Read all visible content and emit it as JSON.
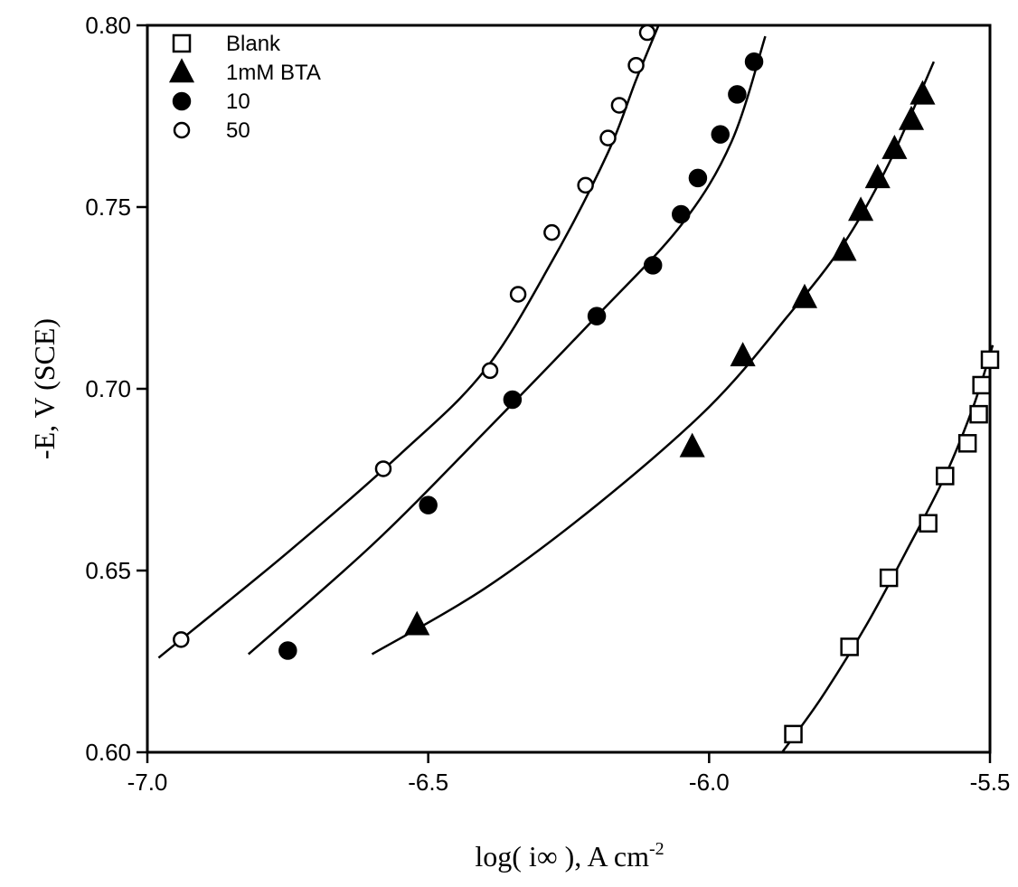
{
  "chart_data": {
    "type": "scatter",
    "title": "",
    "xlabel": "log( i∞ ), A cm-2",
    "xlabel_parts": {
      "main": "log( i∞ ), A cm",
      "superscript": "-2"
    },
    "ylabel": "-E, V (SCE)",
    "xlim": [
      -7.0,
      -5.5
    ],
    "ylim": [
      0.6,
      0.8
    ],
    "xticks": [
      -7.0,
      -6.5,
      -6.0,
      -5.5
    ],
    "xtick_labels": [
      "-7.0",
      "-6.5",
      "-6.0",
      "-5.5"
    ],
    "yticks": [
      0.6,
      0.65,
      0.7,
      0.75,
      0.8
    ],
    "ytick_labels": [
      "0.60",
      "0.65",
      "0.70",
      "0.75",
      "0.80"
    ],
    "grid": false,
    "legend_position": "top-left",
    "series": [
      {
        "name": "Blank",
        "marker": "open-square",
        "color": "#000000",
        "points": [
          [
            -5.85,
            0.605
          ],
          [
            -5.75,
            0.629
          ],
          [
            -5.68,
            0.648
          ],
          [
            -5.61,
            0.663
          ],
          [
            -5.58,
            0.676
          ],
          [
            -5.54,
            0.685
          ],
          [
            -5.52,
            0.693
          ],
          [
            -5.515,
            0.701
          ],
          [
            -5.5,
            0.708
          ]
        ],
        "fit_curve": [
          [
            -5.87,
            0.6
          ],
          [
            -5.8,
            0.615
          ],
          [
            -5.72,
            0.635
          ],
          [
            -5.65,
            0.655
          ],
          [
            -5.58,
            0.676
          ],
          [
            -5.53,
            0.695
          ],
          [
            -5.495,
            0.712
          ]
        ]
      },
      {
        "name": "1mM BTA",
        "marker": "filled-triangle",
        "color": "#000000",
        "points": [
          [
            -6.52,
            0.635
          ],
          [
            -6.03,
            0.684
          ],
          [
            -5.94,
            0.709
          ],
          [
            -5.83,
            0.725
          ],
          [
            -5.76,
            0.738
          ],
          [
            -5.73,
            0.749
          ],
          [
            -5.7,
            0.758
          ],
          [
            -5.67,
            0.766
          ],
          [
            -5.64,
            0.774
          ],
          [
            -5.62,
            0.781
          ]
        ],
        "fit_curve": [
          [
            -6.6,
            0.627
          ],
          [
            -6.4,
            0.645
          ],
          [
            -6.2,
            0.668
          ],
          [
            -6.0,
            0.695
          ],
          [
            -5.86,
            0.72
          ],
          [
            -5.76,
            0.74
          ],
          [
            -5.68,
            0.762
          ],
          [
            -5.6,
            0.79
          ]
        ]
      },
      {
        "name": "10",
        "marker": "filled-circle",
        "color": "#000000",
        "points": [
          [
            -6.75,
            0.628
          ],
          [
            -6.5,
            0.668
          ],
          [
            -6.35,
            0.697
          ],
          [
            -6.2,
            0.72
          ],
          [
            -6.1,
            0.734
          ],
          [
            -6.05,
            0.748
          ],
          [
            -6.02,
            0.758
          ],
          [
            -5.98,
            0.77
          ],
          [
            -5.95,
            0.781
          ],
          [
            -5.92,
            0.79
          ]
        ],
        "fit_curve": [
          [
            -6.82,
            0.627
          ],
          [
            -6.6,
            0.657
          ],
          [
            -6.4,
            0.688
          ],
          [
            -6.2,
            0.72
          ],
          [
            -6.05,
            0.745
          ],
          [
            -5.96,
            0.768
          ],
          [
            -5.9,
            0.797
          ]
        ]
      },
      {
        "name": "50",
        "marker": "open-circle",
        "color": "#000000",
        "points": [
          [
            -6.94,
            0.631
          ],
          [
            -6.58,
            0.678
          ],
          [
            -6.39,
            0.705
          ],
          [
            -6.34,
            0.726
          ],
          [
            -6.28,
            0.743
          ],
          [
            -6.22,
            0.756
          ],
          [
            -6.18,
            0.769
          ],
          [
            -6.16,
            0.778
          ],
          [
            -6.13,
            0.789
          ],
          [
            -6.11,
            0.798
          ]
        ],
        "fit_curve": [
          [
            -6.98,
            0.626
          ],
          [
            -6.75,
            0.655
          ],
          [
            -6.55,
            0.682
          ],
          [
            -6.4,
            0.705
          ],
          [
            -6.28,
            0.735
          ],
          [
            -6.18,
            0.765
          ],
          [
            -6.13,
            0.785
          ],
          [
            -6.09,
            0.8
          ]
        ]
      }
    ]
  }
}
